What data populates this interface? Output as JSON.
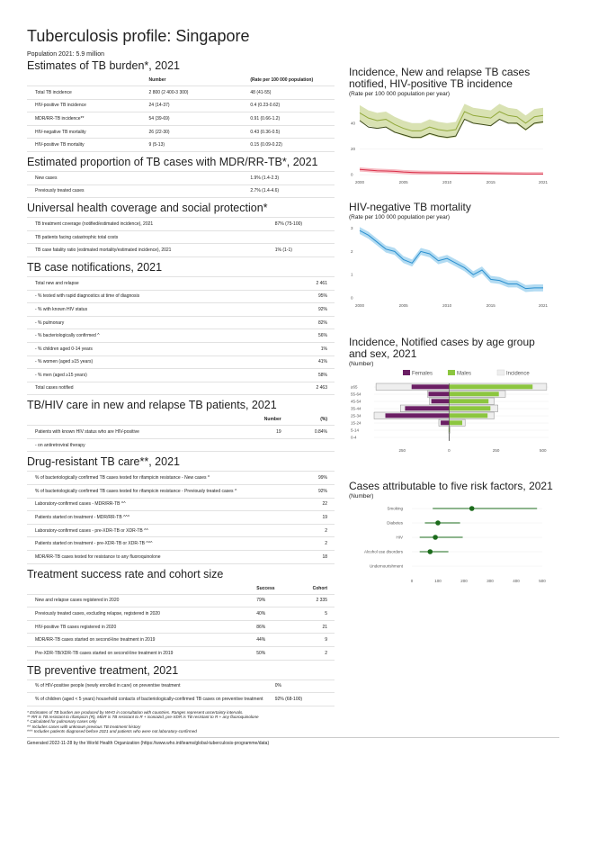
{
  "title": "Tuberculosis profile: Singapore",
  "population": "Population 2021: 5.9 million",
  "sections": [
    {
      "title": "Estimates of TB burden*, 2021",
      "headers": [
        "",
        "Number",
        "(Rate per 100 000 population)"
      ],
      "cols": [
        0.37,
        0.33,
        0.3
      ],
      "align": [
        "l",
        "l",
        "l"
      ],
      "rows": [
        [
          "Total TB incidence",
          "2 800 (2 400-3 300)",
          "48 (41-55)"
        ],
        [
          "HIV-positive TB incidence",
          "24 (14-37)",
          "0.4 (0.23-0.62)"
        ],
        [
          "MDR/RR-TB incidence**",
          "54 (39-69)",
          "0.91 (0.66-1.2)"
        ],
        [
          "HIV-negative TB mortality",
          "26 (22-30)",
          "0.43 (0.36-0.5)"
        ],
        [
          "HIV-positive TB mortality",
          "9 (5-13)",
          "0.15 (0.09-0.22)"
        ]
      ]
    },
    {
      "title": "Estimated proportion of TB cases with MDR/RR-TB*, 2021",
      "cols": [
        0.7,
        0.3
      ],
      "align": [
        "l",
        "l"
      ],
      "rows": [
        [
          "New cases",
          "1.9% (1.4-2.3)"
        ],
        [
          "Previously treated cases",
          "2.7% (1.4-4.6)"
        ]
      ]
    },
    {
      "title": "Universal health coverage and social protection*",
      "cols": [
        0.78,
        0.22
      ],
      "align": [
        "l",
        "l"
      ],
      "rows": [
        [
          "TB treatment coverage (notified/estimated incidence), 2021",
          "87% (75-100)"
        ],
        [
          "TB patients facing catastrophic total costs",
          ""
        ],
        [
          "TB case fatality ratio (estimated mortality/estimated incidence), 2021",
          "1% (1-1)"
        ]
      ]
    },
    {
      "title": "TB case notifications, 2021",
      "cols": [
        0.85,
        0.15
      ],
      "align": [
        "l",
        "r"
      ],
      "rows": [
        [
          "Total new and relapse",
          "2 461"
        ],
        [
          "- % tested with rapid diagnostics at time of diagnosis",
          "95%"
        ],
        [
          "- % with known HIV status",
          "92%"
        ],
        [
          "- % pulmonary",
          "82%"
        ],
        [
          "- % bacteriologically confirmed ^",
          "56%"
        ],
        [
          "- % children aged 0-14 years",
          "1%"
        ],
        [
          "- % women (aged ≥15 years)",
          "41%"
        ],
        [
          "- % men (aged ≥15 years)",
          "58%"
        ],
        [
          "Total cases notified",
          "2 463"
        ]
      ]
    },
    {
      "title": "TB/HIV care in new and relapse TB patients, 2021",
      "headers": [
        "",
        "Number",
        "(%)"
      ],
      "cols": [
        0.7,
        0.15,
        0.15
      ],
      "align": [
        "l",
        "r",
        "r"
      ],
      "rows": [
        [
          "Patients with known HIV status who are HIV-positive",
          "19",
          "0.84%"
        ],
        [
          "- on antiretroviral therapy",
          "",
          ""
        ]
      ]
    },
    {
      "title": "Drug-resistant TB care**, 2021",
      "cols": [
        0.9,
        0.1
      ],
      "align": [
        "l",
        "r"
      ],
      "rows": [
        [
          "% of bacteriologically confirmed TB cases tested for rifampicin resistance - New cases ^",
          "99%"
        ],
        [
          "% of bacteriologically confirmed TB cases tested for rifampicin resistance - Previously treated cases ^",
          "92%"
        ],
        [
          "Laboratory-confirmed cases - MDR/RR-TB ^^",
          "22"
        ],
        [
          "Patients started on treatment - MDR/RR-TB ^^^",
          "19"
        ],
        [
          "Laboratory-confirmed cases - pre-XDR-TB or XDR-TB ^^",
          "2"
        ],
        [
          "Patients started on treatment - pre-XDR-TB or XDR-TB ^^^",
          "2"
        ],
        [
          "MDR/RR-TB cases tested for resistance to any fluoroquinolone",
          "18"
        ]
      ]
    },
    {
      "title": "Treatment success rate and cohort size",
      "headers": [
        "",
        "Success",
        "Cohort"
      ],
      "cols": [
        0.72,
        0.14,
        0.14
      ],
      "align": [
        "l",
        "l",
        "r"
      ],
      "rows": [
        [
          "New and relapse cases registered in 2020",
          "79%",
          "2 335"
        ],
        [
          "Previously treated cases, excluding relapse, registered in 2020",
          "40%",
          "5"
        ],
        [
          "HIV-positive TB cases registered in 2020",
          "86%",
          "21"
        ],
        [
          "MDR/RR-TB cases started on second-line treatment in 2019",
          "44%",
          "9"
        ],
        [
          "Pre-XDR-TB/XDR-TB cases started on second-line treatment in 2019",
          "50%",
          "2"
        ]
      ]
    },
    {
      "title": "TB preventive treatment, 2021",
      "cols": [
        0.78,
        0.22
      ],
      "align": [
        "l",
        "l"
      ],
      "rows": [
        [
          "% of HIV-positive people (newly enrolled in care) on preventive treatment",
          "0%"
        ],
        [
          "% of children (aged < 5 years) household contacts of bacteriologically-confirmed TB cases on preventive treatment",
          "92% (68-100)"
        ]
      ]
    }
  ],
  "notes": [
    "* Estimates of TB burden are produced by WHO in consultation with countries. Ranges represent uncertainty intervals.",
    "** RR is TB resistant to rifampicin (R), MDR is TB resistant to R + isoniazid, pre-XDR is TB resistant to R + any fluoroquinolone",
    "^ Calculated for pulmonary cases only",
    "^^ Includes cases with unknown previous TB treatment history",
    "^^^ Includes patients diagnosed before 2021 and patients who were not laboratory-confirmed"
  ],
  "generated": "Generated 2022-11-28 by the World Health Organization (https://www.who.int/teams/global-tuberculosis-programme/data)",
  "chart_data": [
    {
      "type": "line",
      "title": "Incidence, New and relapse TB cases notified, HIV-positive TB incidence",
      "subtitle": "(Rate per 100 000 population per year)",
      "x": [
        2000,
        2001,
        2002,
        2003,
        2004,
        2005,
        2006,
        2007,
        2008,
        2009,
        2010,
        2011,
        2012,
        2013,
        2014,
        2015,
        2016,
        2017,
        2018,
        2019,
        2020,
        2021
      ],
      "xticks": [
        "2000",
        "2005",
        "2010",
        "2015",
        "2021"
      ],
      "yticks": [
        "0",
        "20",
        "40"
      ],
      "ylim": [
        0,
        56
      ],
      "grid": true,
      "series": [
        {
          "color": "#91a83a",
          "band": "#cfdba0",
          "values": [
            48,
            44,
            42,
            43,
            39,
            36,
            34,
            34,
            37,
            35,
            34,
            35,
            49,
            46,
            45,
            44,
            49,
            46,
            45,
            40,
            45,
            46
          ],
          "spread": 6
        },
        {
          "color": "#3d4a18",
          "values": [
            42,
            37,
            36,
            37,
            33,
            31,
            29,
            29,
            32,
            30,
            29,
            30,
            43,
            40,
            39,
            38,
            43,
            40,
            40,
            35,
            40,
            41
          ]
        },
        {
          "color": "#d9304a",
          "band": "#f4a8b2",
          "values": [
            4,
            3.5,
            3,
            2.8,
            2.5,
            2,
            1.7,
            1.5,
            1.4,
            1.3,
            1.2,
            1.1,
            1,
            1,
            0.9,
            0.8,
            0.7,
            0.6,
            0.5,
            0.4,
            0.4,
            0.4
          ],
          "spread": 1.6
        }
      ]
    },
    {
      "type": "line",
      "title": "HIV-negative TB mortality",
      "subtitle": "(Rate per 100 000 population per year)",
      "x": [
        2000,
        2001,
        2002,
        2003,
        2004,
        2005,
        2006,
        2007,
        2008,
        2009,
        2010,
        2011,
        2012,
        2013,
        2014,
        2015,
        2016,
        2017,
        2018,
        2019,
        2020,
        2021
      ],
      "xticks": [
        "2000",
        "2005",
        "2010",
        "2015",
        "2021"
      ],
      "yticks": [
        "0",
        "1",
        "2",
        "3"
      ],
      "ylim": [
        0,
        3.1
      ],
      "grid": false,
      "series": [
        {
          "color": "#2a8fcf",
          "band": "#9fd2ef",
          "values": [
            2.9,
            2.7,
            2.4,
            2.1,
            2.0,
            1.65,
            1.5,
            2.0,
            1.9,
            1.6,
            1.7,
            1.5,
            1.3,
            1.0,
            1.2,
            0.8,
            0.75,
            0.6,
            0.6,
            0.4,
            0.43,
            0.43
          ],
          "spread": 0.15
        }
      ]
    },
    {
      "type": "bar",
      "title": "Incidence, Notified cases by age group and sex, 2021",
      "subtitle": "(Number)",
      "legend": [
        "Females",
        "Males",
        "Incidence"
      ],
      "colors": {
        "female": "#6b1f64",
        "male": "#8cc63f",
        "incidence": "#eeeeee"
      },
      "categories": [
        "≥65",
        "55-64",
        "45-54",
        "35-44",
        "25-34",
        "15-24",
        "5-14",
        "0-4"
      ],
      "females": [
        200,
        110,
        95,
        235,
        340,
        45,
        0,
        0
      ],
      "males": [
        445,
        265,
        210,
        220,
        205,
        70,
        3,
        0
      ],
      "incidence_f": [
        390,
        115,
        105,
        260,
        400,
        55,
        2,
        1
      ],
      "incidence_m": [
        520,
        300,
        240,
        260,
        240,
        85,
        4,
        1
      ],
      "xticks": [
        "250",
        "0",
        "250",
        "500"
      ],
      "xlim": [
        -400,
        530
      ]
    },
    {
      "type": "scatter",
      "title": "Cases attributable to five risk factors, 2021",
      "subtitle": "(Number)",
      "color": "#1b6b1b",
      "categories": [
        "Smoking",
        "Diabetes",
        "HIV",
        "Alcohol use disorders",
        "Undernourishment"
      ],
      "values": [
        230,
        100,
        90,
        70,
        null
      ],
      "low": [
        80,
        50,
        30,
        30,
        null
      ],
      "high": [
        480,
        185,
        195,
        140,
        null
      ],
      "xticks": [
        "0",
        "100",
        "200",
        "300",
        "400",
        "500"
      ],
      "xlim": [
        0,
        500
      ]
    }
  ]
}
